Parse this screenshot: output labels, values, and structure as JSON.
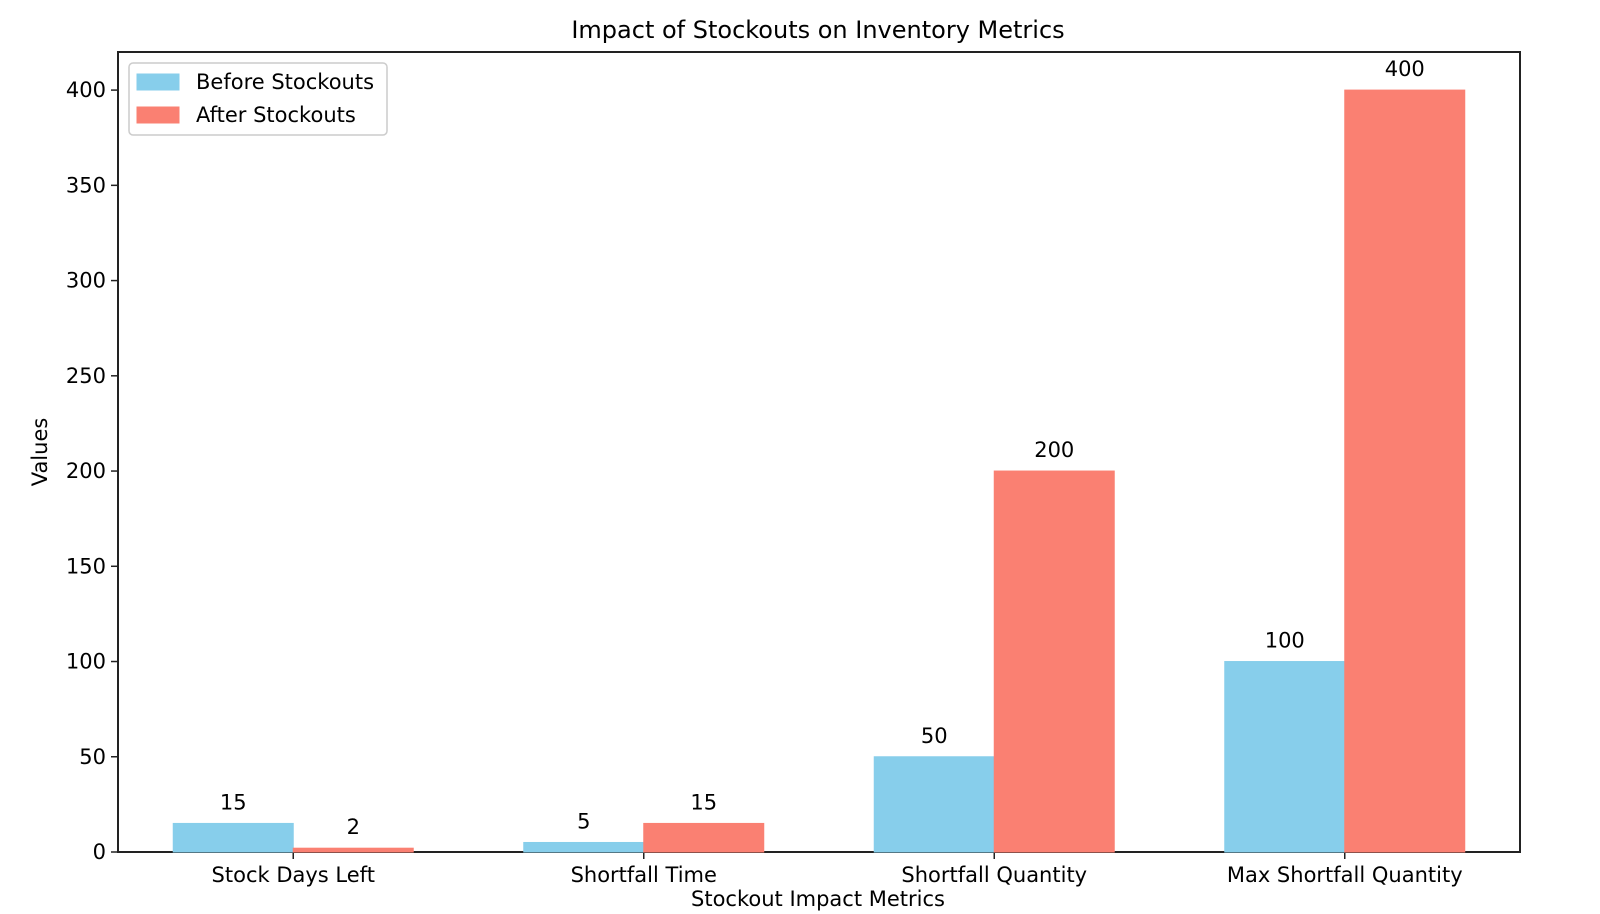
{
  "chart_data": {
    "type": "bar",
    "title": "Impact of Stockouts on Inventory Metrics",
    "xlabel": "Stockout Impact Metrics",
    "ylabel": "Values",
    "categories": [
      "Stock Days Left",
      "Shortfall Time",
      "Shortfall Quantity",
      "Max Shortfall Quantity"
    ],
    "series": [
      {
        "name": "Before Stockouts",
        "values": [
          15,
          5,
          50,
          100
        ],
        "color": "#87CEEB"
      },
      {
        "name": "After Stockouts",
        "values": [
          2,
          15,
          200,
          400
        ],
        "color": "#FA8072"
      }
    ],
    "ylim": [
      0,
      420
    ],
    "yticks": [
      0,
      50,
      100,
      150,
      200,
      250,
      300,
      350,
      400
    ],
    "legend_position": "top-left",
    "grid": false
  }
}
